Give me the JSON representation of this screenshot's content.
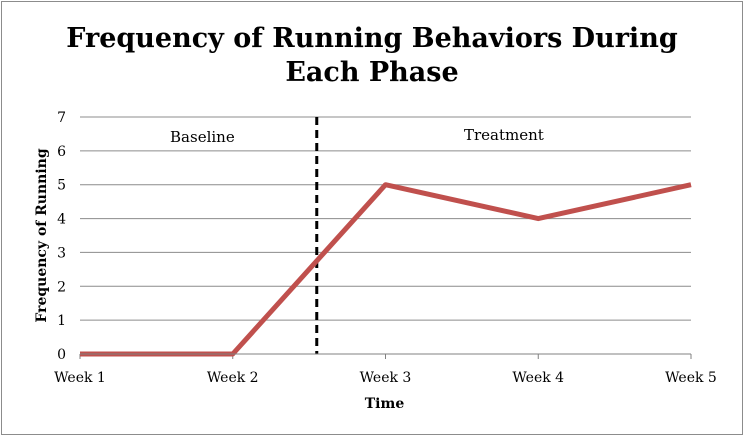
{
  "chart_data": {
    "type": "line",
    "title_line1": "Frequency of Running Behaviors During",
    "title_line2": "Each Phase",
    "xlabel": "Time",
    "ylabel": "Frequency of Running",
    "categories": [
      "Week 1",
      "Week 2",
      "Week 3",
      "Week 4",
      "Week 5"
    ],
    "values": [
      0,
      0,
      5,
      4,
      5
    ],
    "ylim": [
      0,
      7
    ],
    "yticks": [
      0,
      1,
      2,
      3,
      4,
      5,
      6,
      7
    ],
    "grid": true,
    "line_color": "#c0504d",
    "phase_change_after": "Week 2",
    "phase_change_x": 2.55,
    "phase_labels": {
      "left": "Baseline",
      "right": "Treatment"
    }
  }
}
